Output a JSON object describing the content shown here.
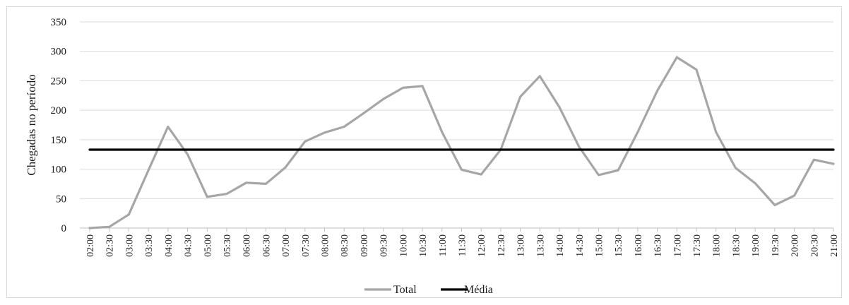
{
  "chart_data": {
    "type": "line",
    "ylabel": "Chegadas no período",
    "xlabel": "",
    "title": "",
    "ylim": [
      0,
      350
    ],
    "yticks": [
      0,
      50,
      100,
      150,
      200,
      250,
      300,
      350
    ],
    "grid": "horizontal",
    "legend_position": "bottom-center",
    "categories": [
      "02:00",
      "02:30",
      "03:00",
      "03:30",
      "04:00",
      "04:30",
      "05:00",
      "05:30",
      "06:00",
      "06:30",
      "07:00",
      "07:30",
      "08:00",
      "08:30",
      "09:00",
      "09:30",
      "10:00",
      "10:30",
      "11:00",
      "11:30",
      "12:00",
      "12:30",
      "13:00",
      "13:30",
      "14:00",
      "14:30",
      "15:00",
      "15:30",
      "16:00",
      "16:30",
      "17:00",
      "17:30",
      "18:00",
      "18:30",
      "19:00",
      "19:30",
      "20:00",
      "20:30",
      "21:00"
    ],
    "series": [
      {
        "name": "Total",
        "color": "#a6a6a6",
        "values": [
          0,
          2,
          23,
          98,
          172,
          125,
          53,
          58,
          77,
          75,
          103,
          147,
          162,
          172,
          195,
          219,
          238,
          241,
          163,
          99,
          91,
          133,
          223,
          258,
          205,
          138,
          90,
          98,
          163,
          233,
          290,
          269,
          163,
          102,
          76,
          39,
          55,
          116,
          109
        ]
      },
      {
        "name": "Média",
        "color": "#000000",
        "values": [
          133,
          133,
          133,
          133,
          133,
          133,
          133,
          133,
          133,
          133,
          133,
          133,
          133,
          133,
          133,
          133,
          133,
          133,
          133,
          133,
          133,
          133,
          133,
          133,
          133,
          133,
          133,
          133,
          133,
          133,
          133,
          133,
          133,
          133,
          133,
          133,
          133,
          133,
          133
        ]
      }
    ]
  }
}
